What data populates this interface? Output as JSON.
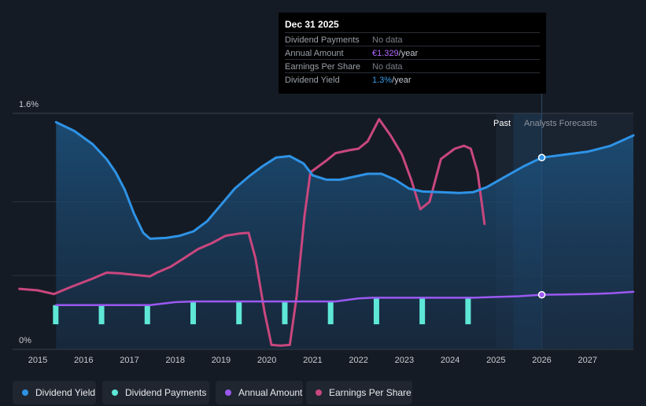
{
  "tooltip": {
    "date": "Dec 31 2025",
    "rows": [
      {
        "label": "Dividend Payments",
        "value": "No data",
        "suffix": "",
        "color": "#7a8088"
      },
      {
        "label": "Annual Amount",
        "value": "€1.329",
        "suffix": "/year",
        "color": "#b36bff"
      },
      {
        "label": "Earnings Per Share",
        "value": "No data",
        "suffix": "",
        "color": "#7a8088"
      },
      {
        "label": "Dividend Yield",
        "value": "1.3%",
        "suffix": "/year",
        "color": "#3a9be8"
      }
    ]
  },
  "periods": {
    "past": "Past",
    "forecast": "Analysts Forecasts"
  },
  "legend": [
    {
      "label": "Dividend Yield",
      "color": "#2e93e6"
    },
    {
      "label": "Dividend Payments",
      "color": "#5ee7d6"
    },
    {
      "label": "Annual Amount",
      "color": "#9b59f2"
    },
    {
      "label": "Earnings Per Share",
      "color": "#c9477e"
    }
  ],
  "chart_data": {
    "type": "line",
    "title": "",
    "xlabel": "",
    "ylabel": "",
    "ylim": [
      0,
      1.6
    ],
    "xlim": [
      2014.45,
      2028.0
    ],
    "y_tick_labels": [
      "0%",
      "1.6%"
    ],
    "x_tick_labels": [
      "2015",
      "2016",
      "2017",
      "2018",
      "2019",
      "2020",
      "2021",
      "2022",
      "2023",
      "2024",
      "2025",
      "2026",
      "2027"
    ],
    "tooltip_x": 2026.0,
    "past_forecast_boundary": 2025.0,
    "series": [
      {
        "name": "Dividend Yield",
        "color": "#2e93e6",
        "points": [
          [
            2015.4,
            1.54
          ],
          [
            2015.8,
            1.48
          ],
          [
            2016.2,
            1.39
          ],
          [
            2016.5,
            1.29
          ],
          [
            2016.7,
            1.2
          ],
          [
            2016.9,
            1.08
          ],
          [
            2017.1,
            0.92
          ],
          [
            2017.3,
            0.79
          ],
          [
            2017.45,
            0.75
          ],
          [
            2017.8,
            0.755
          ],
          [
            2018.1,
            0.77
          ],
          [
            2018.4,
            0.8
          ],
          [
            2018.7,
            0.87
          ],
          [
            2019.0,
            0.98
          ],
          [
            2019.3,
            1.09
          ],
          [
            2019.6,
            1.17
          ],
          [
            2019.9,
            1.24
          ],
          [
            2020.2,
            1.3
          ],
          [
            2020.5,
            1.31
          ],
          [
            2020.8,
            1.26
          ],
          [
            2021.0,
            1.18
          ],
          [
            2021.3,
            1.15
          ],
          [
            2021.6,
            1.15
          ],
          [
            2021.9,
            1.17
          ],
          [
            2022.2,
            1.19
          ],
          [
            2022.5,
            1.19
          ],
          [
            2022.8,
            1.15
          ],
          [
            2023.1,
            1.09
          ],
          [
            2023.4,
            1.07
          ],
          [
            2023.8,
            1.065
          ],
          [
            2024.2,
            1.06
          ],
          [
            2024.5,
            1.065
          ],
          [
            2024.8,
            1.1
          ],
          [
            2025.2,
            1.17
          ],
          [
            2025.6,
            1.24
          ],
          [
            2026.0,
            1.3
          ],
          [
            2026.5,
            1.32
          ],
          [
            2027.0,
            1.34
          ],
          [
            2027.5,
            1.38
          ],
          [
            2028.0,
            1.45
          ]
        ]
      },
      {
        "name": "Earnings Per Share",
        "color": "#c9477e",
        "points": [
          [
            2014.6,
            0.41
          ],
          [
            2015.0,
            0.4
          ],
          [
            2015.35,
            0.375
          ],
          [
            2015.7,
            0.42
          ],
          [
            2016.2,
            0.48
          ],
          [
            2016.5,
            0.52
          ],
          [
            2016.8,
            0.515
          ],
          [
            2017.1,
            0.505
          ],
          [
            2017.45,
            0.495
          ],
          [
            2017.6,
            0.52
          ],
          [
            2017.9,
            0.56
          ],
          [
            2018.2,
            0.62
          ],
          [
            2018.5,
            0.68
          ],
          [
            2018.8,
            0.72
          ],
          [
            2019.1,
            0.77
          ],
          [
            2019.4,
            0.785
          ],
          [
            2019.6,
            0.79
          ],
          [
            2019.75,
            0.62
          ],
          [
            2019.95,
            0.25
          ],
          [
            2020.1,
            0.03
          ],
          [
            2020.3,
            0.025
          ],
          [
            2020.5,
            0.03
          ],
          [
            2020.65,
            0.36
          ],
          [
            2020.82,
            0.9
          ],
          [
            2020.95,
            1.2
          ],
          [
            2021.3,
            1.28
          ],
          [
            2021.5,
            1.33
          ],
          [
            2021.8,
            1.35
          ],
          [
            2022.0,
            1.36
          ],
          [
            2022.2,
            1.41
          ],
          [
            2022.45,
            1.56
          ],
          [
            2022.7,
            1.45
          ],
          [
            2022.95,
            1.32
          ],
          [
            2023.15,
            1.15
          ],
          [
            2023.35,
            0.95
          ],
          [
            2023.55,
            1.0
          ],
          [
            2023.8,
            1.29
          ],
          [
            2024.1,
            1.36
          ],
          [
            2024.3,
            1.38
          ],
          [
            2024.45,
            1.36
          ],
          [
            2024.6,
            1.2
          ],
          [
            2024.75,
            0.85
          ]
        ]
      },
      {
        "name": "Annual Amount",
        "color": "#9b59f2",
        "points": [
          [
            2015.4,
            0.3
          ],
          [
            2016.0,
            0.3
          ],
          [
            2017.0,
            0.3
          ],
          [
            2017.45,
            0.3
          ],
          [
            2018.0,
            0.32
          ],
          [
            2018.4,
            0.325
          ],
          [
            2019.0,
            0.325
          ],
          [
            2020.0,
            0.325
          ],
          [
            2021.0,
            0.325
          ],
          [
            2021.5,
            0.325
          ],
          [
            2022.0,
            0.345
          ],
          [
            2022.3,
            0.35
          ],
          [
            2023.0,
            0.35
          ],
          [
            2024.0,
            0.35
          ],
          [
            2024.5,
            0.35
          ],
          [
            2025.0,
            0.355
          ],
          [
            2025.5,
            0.36
          ],
          [
            2026.0,
            0.37
          ],
          [
            2026.5,
            0.372
          ],
          [
            2027.0,
            0.375
          ],
          [
            2027.5,
            0.38
          ],
          [
            2028.0,
            0.39
          ]
        ]
      }
    ],
    "dividend_payments": {
      "name": "Dividend Payments",
      "color": "#5ee7d6",
      "x": [
        2015.4,
        2016.4,
        2017.4,
        2018.4,
        2019.4,
        2020.4,
        2021.4,
        2022.4,
        2023.4,
        2024.4
      ],
      "values": [
        0.3,
        0.3,
        0.3,
        0.32,
        0.325,
        0.325,
        0.325,
        0.35,
        0.35,
        0.35
      ]
    }
  }
}
